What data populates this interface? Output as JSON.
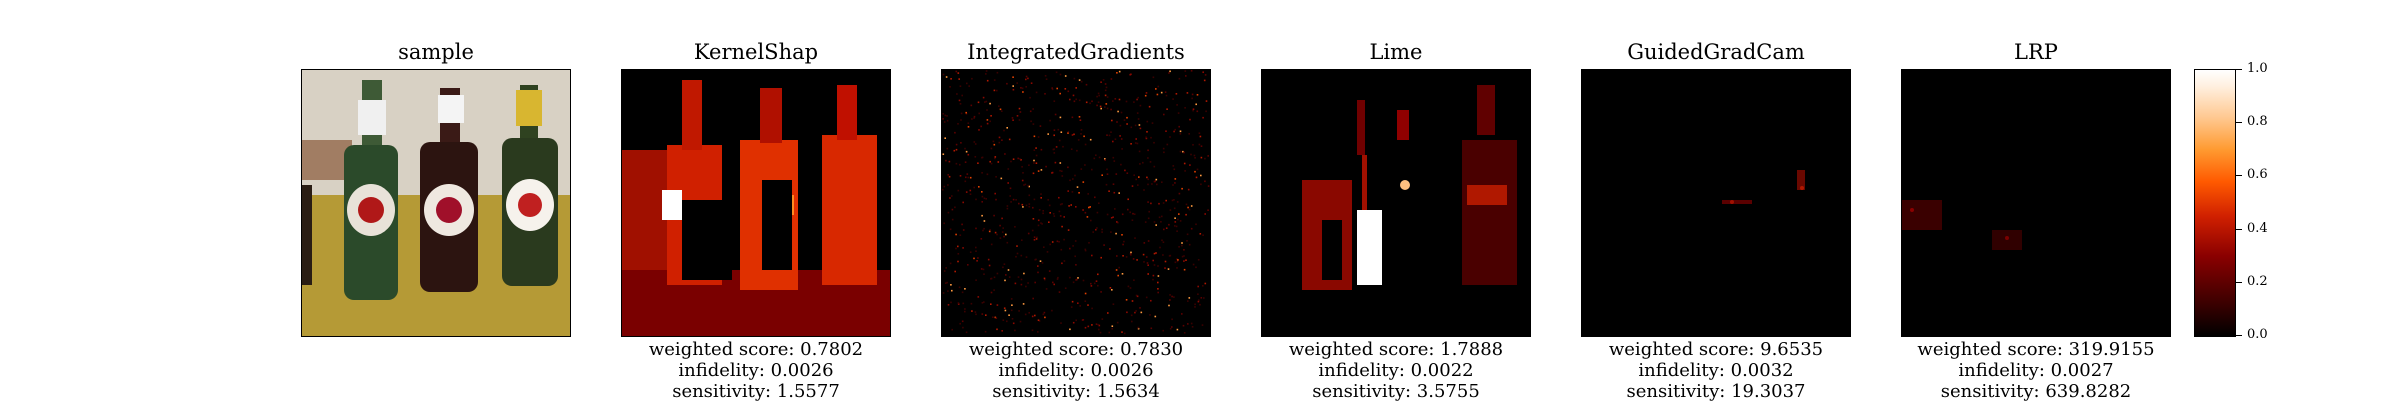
{
  "chart_data": {
    "type": "heatmap",
    "panels": [
      {
        "title": "sample",
        "kind": "photo",
        "metrics": []
      },
      {
        "title": "KernelShap",
        "kind": "attribution",
        "metrics": [
          "weighted score: 0.7802",
          "infidelity: 0.0026",
          "sensitivity: 1.5577"
        ]
      },
      {
        "title": "IntegratedGradients",
        "kind": "attribution",
        "metrics": [
          "weighted score: 0.7830",
          "infidelity: 0.0026",
          "sensitivity: 1.5634"
        ]
      },
      {
        "title": "Lime",
        "kind": "attribution",
        "metrics": [
          "weighted score: 1.7888",
          "infidelity: 0.0022",
          "sensitivity: 3.5755"
        ]
      },
      {
        "title": "GuidedGradCam",
        "kind": "attribution",
        "metrics": [
          "weighted score: 9.6535",
          "infidelity: 0.0032",
          "sensitivity: 19.3037"
        ]
      },
      {
        "title": "LRP",
        "kind": "attribution",
        "metrics": [
          "weighted score: 319.9155",
          "infidelity: 0.0027",
          "sensitivity: 639.8282"
        ]
      }
    ],
    "colorbar": {
      "ticks": [
        "0.0",
        "0.2",
        "0.4",
        "0.6",
        "0.8",
        "1.0"
      ],
      "range": [
        0,
        1
      ],
      "colormap": "gist_heat"
    },
    "colors": {
      "background": "#ffffff",
      "heat_low": "#000000",
      "heat_mid": "#d02000",
      "heat_high": "#ffffff"
    }
  }
}
